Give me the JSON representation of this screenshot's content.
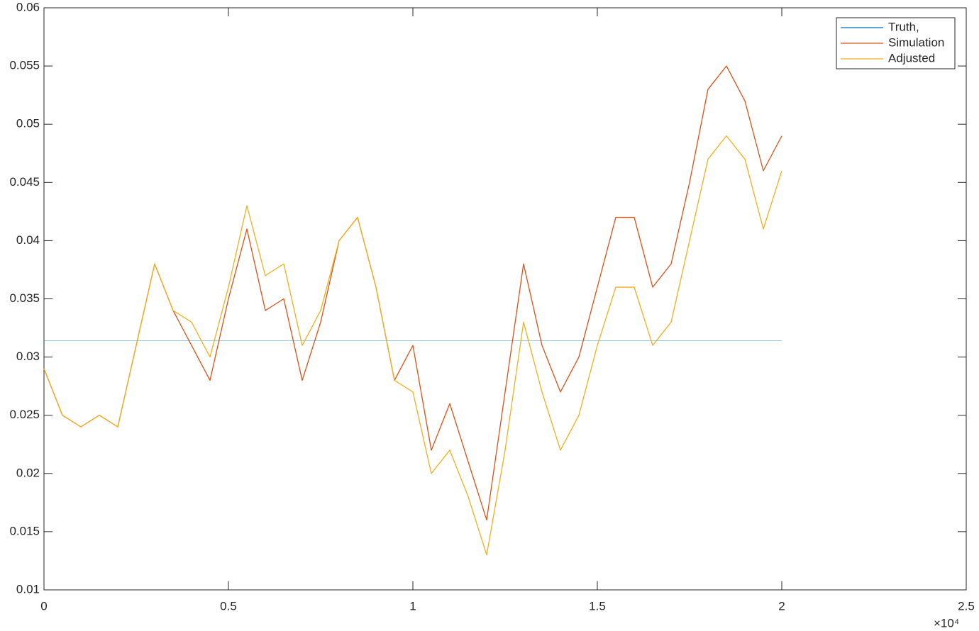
{
  "chart_data": {
    "type": "line",
    "x": [
      0,
      500,
      1000,
      1500,
      2000,
      2500,
      3000,
      3500,
      4000,
      4500,
      5000,
      5500,
      6000,
      6500,
      7000,
      7500,
      8000,
      8500,
      9000,
      9500,
      10000,
      10500,
      11000,
      11500,
      12000,
      12500,
      13000,
      13500,
      14000,
      14500,
      15000,
      15500,
      16000,
      16500,
      17000,
      17500,
      18000,
      18500,
      19000,
      19500,
      20000
    ],
    "series": [
      {
        "name": "Truth,",
        "color": "#0072BD",
        "values": [
          0.0314,
          0.0314,
          0.0314,
          0.0314,
          0.0314,
          0.0314,
          0.0314,
          0.0314,
          0.0314,
          0.0314,
          0.0314,
          0.0314,
          0.0314,
          0.0314,
          0.0314,
          0.0314,
          0.0314,
          0.0314,
          0.0314,
          0.0314,
          0.0314,
          0.0314,
          0.0314,
          0.0314,
          0.0314,
          0.0314,
          0.0314,
          0.0314,
          0.0314,
          0.0314,
          0.0314,
          0.0314,
          0.0314,
          0.0314,
          0.0314,
          0.0314,
          0.0314,
          0.0314,
          0.0314,
          0.0314,
          0.0314
        ]
      },
      {
        "name": "Simulation",
        "color": "#D95319",
        "values": [
          0.029,
          0.025,
          0.024,
          0.025,
          0.024,
          0.031,
          0.038,
          0.034,
          0.031,
          0.028,
          0.035,
          0.041,
          0.034,
          0.035,
          0.028,
          0.033,
          0.04,
          0.042,
          0.036,
          0.028,
          0.031,
          0.022,
          0.026,
          0.021,
          0.016,
          0.027,
          0.038,
          0.031,
          0.027,
          0.03,
          0.036,
          0.042,
          0.042,
          0.036,
          0.038,
          0.045,
          0.053,
          0.055,
          0.052,
          0.046,
          0.049
        ]
      },
      {
        "name": "Adjusted",
        "color": "#EDB120",
        "values": [
          0.029,
          0.025,
          0.024,
          0.025,
          0.024,
          0.031,
          0.038,
          0.034,
          0.033,
          0.03,
          0.036,
          0.043,
          0.037,
          0.038,
          0.031,
          0.034,
          0.04,
          0.042,
          0.036,
          0.028,
          0.027,
          0.02,
          0.022,
          0.018,
          0.013,
          0.022,
          0.033,
          0.027,
          0.022,
          0.025,
          0.031,
          0.036,
          0.036,
          0.031,
          0.033,
          0.04,
          0.047,
          0.049,
          0.047,
          0.041,
          0.046
        ]
      }
    ],
    "xlim": [
      0,
      25000
    ],
    "xticks": [
      0,
      {
        "value": 5000,
        "label": "0.5"
      },
      {
        "value": 10000,
        "label": "1"
      },
      {
        "value": 15000,
        "label": "1.5"
      },
      {
        "value": 20000,
        "label": "2"
      },
      {
        "value": 25000,
        "label": "2.5"
      }
    ],
    "x_exponent": "×10⁴",
    "ylim": [
      0.01,
      0.06
    ],
    "yticks": [
      0.01,
      0.015,
      0.02,
      0.025,
      0.03,
      0.035,
      0.04,
      0.045,
      0.05,
      0.055,
      0.06
    ],
    "legend": "northeast"
  }
}
